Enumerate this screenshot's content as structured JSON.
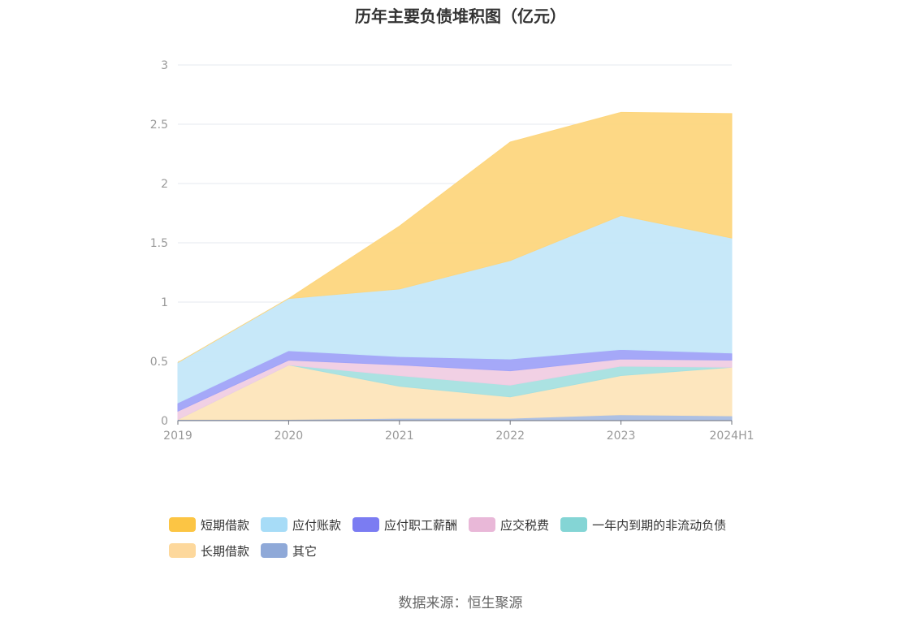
{
  "title": "历年主要负债堆积图（亿元）",
  "source": "数据来源：恒生聚源",
  "chart_data": {
    "type": "area",
    "stacked": true,
    "title": "历年主要负债堆积图（亿元）",
    "categories": [
      "2019",
      "2020",
      "2021",
      "2022",
      "2023",
      "2024H1"
    ],
    "ylim": [
      0,
      3
    ],
    "yticks": [
      "0",
      "0.5",
      "1",
      "1.5",
      "2",
      "2.5",
      "3"
    ],
    "grid": true,
    "legend_position": "bottom",
    "series": [
      {
        "name": "其它",
        "color": "#8fa9d8",
        "fill": "#a9bde2",
        "values": [
          0.01,
          0.01,
          0.02,
          0.02,
          0.05,
          0.04
        ]
      },
      {
        "name": "长期借款",
        "color": "#fdd89c",
        "fill": "#fde5ba",
        "values": [
          0.0,
          0.46,
          0.27,
          0.18,
          0.33,
          0.41
        ]
      },
      {
        "name": "一年内到期的非流动负债",
        "color": "#84d5d5",
        "fill": "#a6e0e0",
        "values": [
          0.0,
          0.0,
          0.09,
          0.1,
          0.08,
          0.0
        ]
      },
      {
        "name": "应交税费",
        "color": "#e9b8d8",
        "fill": "#f0cde3",
        "values": [
          0.07,
          0.04,
          0.09,
          0.12,
          0.06,
          0.06
        ]
      },
      {
        "name": "应付职工薪酬",
        "color": "#7b7cf2",
        "fill": "#a0a3f8",
        "values": [
          0.07,
          0.08,
          0.07,
          0.1,
          0.08,
          0.06
        ]
      },
      {
        "name": "应付账款",
        "color": "#a7dcf7",
        "fill": "#c4e7f9",
        "values": [
          0.34,
          0.44,
          0.57,
          0.83,
          1.13,
          0.97
        ]
      },
      {
        "name": "短期借款",
        "color": "#fcc544",
        "fill": "#fdd67e",
        "values": [
          0.0,
          0.0,
          0.53,
          1.0,
          0.87,
          1.05
        ]
      }
    ]
  },
  "legend": {
    "rows": [
      [
        "短期借款",
        "应付账款",
        "应付职工薪酬",
        "应交税费",
        "一年内到期的非流动负债"
      ],
      [
        "长期借款",
        "其它"
      ]
    ]
  }
}
